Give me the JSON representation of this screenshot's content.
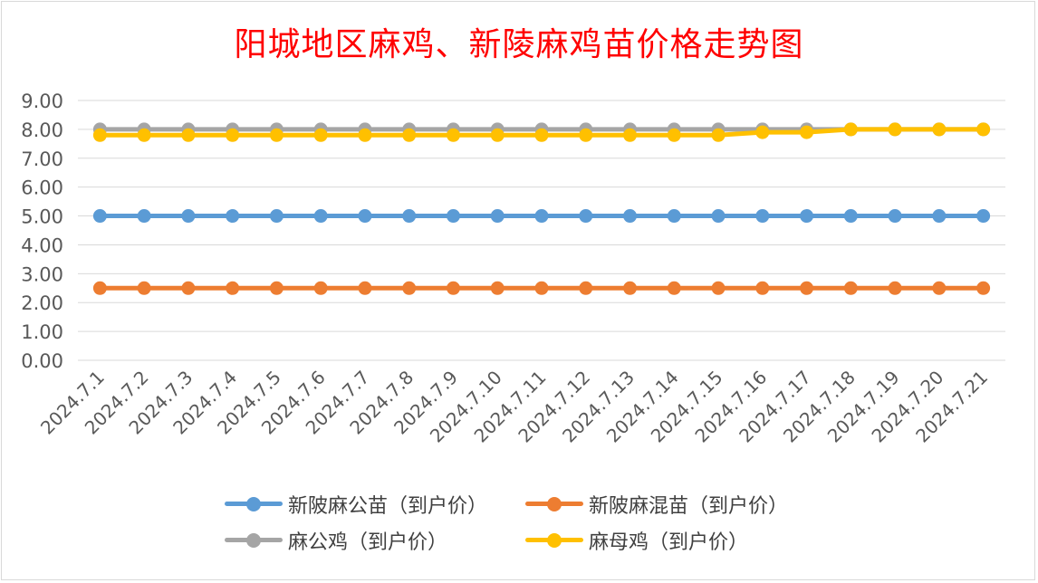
{
  "chart_data": {
    "type": "line",
    "title": "阳城地区麻鸡、新陵麻鸡苗价格走势图",
    "xlabel": "",
    "ylabel": "",
    "ylim": [
      0,
      9
    ],
    "yticks": [
      "0.00",
      "1.00",
      "2.00",
      "3.00",
      "4.00",
      "5.00",
      "6.00",
      "7.00",
      "8.00",
      "9.00"
    ],
    "grid": true,
    "legend_position": "bottom",
    "categories": [
      "2024.7.1",
      "2024.7.2",
      "2024.7.3",
      "2024.7.4",
      "2024.7.5",
      "2024.7.6",
      "2024.7.7",
      "2024.7.8",
      "2024.7.9",
      "2024.7.10",
      "2024.7.11",
      "2024.7.12",
      "2024.7.13",
      "2024.7.14",
      "2024.7.15",
      "2024.7.16",
      "2024.7.17",
      "2024.7.18",
      "2024.7.19",
      "2024.7.20",
      "2024.7.21"
    ],
    "series": [
      {
        "name": "新陂麻公苗（到户价）",
        "color": "#5b9bd5",
        "values": [
          5,
          5,
          5,
          5,
          5,
          5,
          5,
          5,
          5,
          5,
          5,
          5,
          5,
          5,
          5,
          5,
          5,
          5,
          5,
          5,
          5
        ]
      },
      {
        "name": "新陂麻混苗（到户价）",
        "color": "#ed7d31",
        "values": [
          2.5,
          2.5,
          2.5,
          2.5,
          2.5,
          2.5,
          2.5,
          2.5,
          2.5,
          2.5,
          2.5,
          2.5,
          2.5,
          2.5,
          2.5,
          2.5,
          2.5,
          2.5,
          2.5,
          2.5,
          2.5
        ]
      },
      {
        "name": "麻公鸡（到户价）",
        "color": "#a5a5a5",
        "values": [
          8,
          8,
          8,
          8,
          8,
          8,
          8,
          8,
          8,
          8,
          8,
          8,
          8,
          8,
          8,
          8,
          8,
          8,
          8,
          8,
          8
        ]
      },
      {
        "name": "麻母鸡（到户价）",
        "color": "#ffc000",
        "values": [
          7.8,
          7.8,
          7.8,
          7.8,
          7.8,
          7.8,
          7.8,
          7.8,
          7.8,
          7.8,
          7.8,
          7.8,
          7.8,
          7.8,
          7.8,
          7.9,
          7.9,
          8,
          8,
          8,
          8
        ]
      }
    ]
  }
}
